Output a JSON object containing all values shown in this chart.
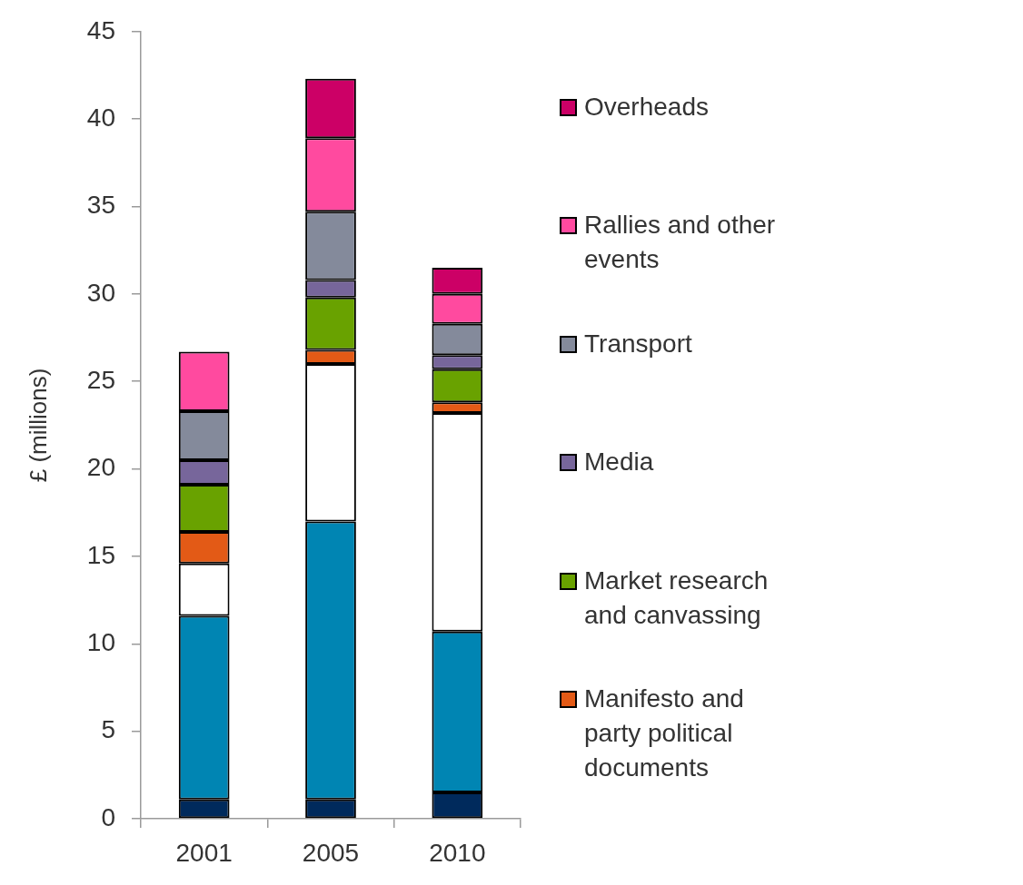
{
  "chart_data": {
    "type": "bar",
    "stacked": true,
    "ylabel": "£ (millions)",
    "categories": [
      "2001",
      "2005",
      "2010"
    ],
    "series": [
      {
        "color": "#002a5c",
        "values": [
          1.1,
          1.1,
          1.5
        ]
      },
      {
        "color": "#0085b3",
        "values": [
          10.5,
          15.9,
          9.2
        ]
      },
      {
        "color": "#ffffff",
        "values": [
          3.0,
          9.0,
          12.5
        ]
      },
      {
        "name": "Manifesto and party political documents",
        "color": "#e35a16",
        "values": [
          1.8,
          0.8,
          0.6
        ]
      },
      {
        "name": "Market research and canvassing",
        "color": "#69a200",
        "values": [
          2.7,
          3.0,
          1.9
        ]
      },
      {
        "name": "Media",
        "color": "#77669b",
        "values": [
          1.4,
          1.0,
          0.8
        ]
      },
      {
        "name": "Transport",
        "color": "#848a9b",
        "values": [
          2.8,
          3.9,
          1.8
        ]
      },
      {
        "name": "Rallies and other events",
        "color": "#ff4a9f",
        "values": [
          3.4,
          4.2,
          1.7
        ]
      },
      {
        "name": "Overheads",
        "color": "#cc0066",
        "values": [
          null,
          3.4,
          1.5
        ]
      }
    ],
    "ylim": [
      0,
      45
    ],
    "yticks": [
      0,
      5,
      10,
      15,
      20,
      25,
      30,
      35,
      40,
      45
    ],
    "legend": "right"
  }
}
